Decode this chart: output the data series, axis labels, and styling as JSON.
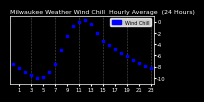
{
  "hours": [
    0,
    1,
    2,
    3,
    4,
    5,
    6,
    7,
    8,
    9,
    10,
    11,
    12,
    13,
    14,
    15,
    16,
    17,
    18,
    19,
    20,
    21,
    22,
    23
  ],
  "wind_chill": [
    -7.5,
    -8.2,
    -9.0,
    -9.5,
    -10.0,
    -9.8,
    -9.0,
    -7.5,
    -5.0,
    -2.5,
    -0.8,
    0.0,
    0.2,
    -0.5,
    -2.0,
    -3.5,
    -4.2,
    -4.8,
    -5.5,
    -6.2,
    -6.8,
    -7.3,
    -7.8,
    -8.2
  ],
  "line_color": "#0000ff",
  "bg_color": "#000000",
  "plot_bg": "#000000",
  "text_color": "#ffffff",
  "grid_color": "#555555",
  "title": "Milwaukee Weather Wind Chill  Hourly Average  (24 Hours)",
  "title_fontsize": 4.5,
  "tick_fontsize": 3.8,
  "ylim": [
    -11,
    1
  ],
  "xlim": [
    -0.5,
    23.5
  ],
  "yticks": [
    -10,
    -8,
    -6,
    -4,
    -2,
    0
  ],
  "ytick_labels": [
    "-10",
    "-8",
    "-6",
    "-4",
    "-2",
    "0"
  ],
  "xtick_positions": [
    1,
    3,
    5,
    7,
    9,
    11,
    13,
    15,
    17,
    19,
    21,
    23
  ],
  "xtick_labels": [
    "1",
    "3",
    "5",
    "7",
    "9",
    "11",
    "13",
    "15",
    "17",
    "19",
    "21",
    "23"
  ],
  "vgrid_positions": [
    3,
    7,
    11,
    15,
    19,
    23
  ],
  "legend_label": "Wind Chill",
  "legend_color": "#0000ff",
  "marker_size": 2
}
